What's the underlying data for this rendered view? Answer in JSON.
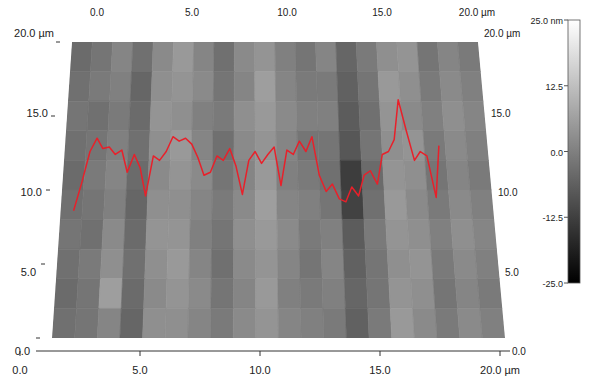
{
  "chart_data": {
    "type": "heatmap",
    "xlim": [
      0,
      20
    ],
    "xticks": [
      {
        "value": 0,
        "label": "0.0"
      },
      {
        "value": 5,
        "label": "5.0"
      },
      {
        "value": 10,
        "label": "10.0"
      },
      {
        "value": 15,
        "label": "15.0"
      },
      {
        "value": 20,
        "label": "20.0 µm"
      }
    ],
    "ylim": [
      0,
      20
    ],
    "yticks": [
      {
        "value": 0,
        "label": "0.0"
      },
      {
        "value": 5,
        "label": "5.0"
      },
      {
        "value": 10,
        "label": "10.0"
      },
      {
        "value": 15,
        "label": "15.0"
      },
      {
        "value": 20,
        "label": "20.0 µm"
      }
    ],
    "cells": [
      [
        -4,
        -2,
        1,
        -3,
        2,
        5,
        1,
        -3,
        2,
        4,
        0,
        -2,
        1,
        -5,
        -1,
        3,
        4,
        -2,
        1,
        -1
      ],
      [
        -3,
        -1,
        0,
        -5,
        3,
        4,
        2,
        -2,
        1,
        6,
        1,
        -1,
        -1,
        -6,
        -2,
        5,
        3,
        -1,
        2,
        0
      ],
      [
        -2,
        -3,
        -1,
        -4,
        4,
        3,
        0,
        -1,
        3,
        5,
        2,
        0,
        0,
        -7,
        -3,
        4,
        2,
        0,
        3,
        1
      ],
      [
        -3,
        -2,
        0,
        -3,
        3,
        5,
        1,
        -3,
        2,
        4,
        1,
        -2,
        -2,
        -8,
        -2,
        3,
        4,
        -1,
        2,
        0
      ],
      [
        -4,
        -1,
        1,
        -4,
        2,
        4,
        2,
        -2,
        1,
        5,
        0,
        -1,
        -3,
        -13,
        -4,
        4,
        3,
        -2,
        1,
        -1
      ],
      [
        -3,
        -2,
        0,
        -5,
        3,
        3,
        1,
        -1,
        2,
        6,
        1,
        0,
        -2,
        -12,
        -3,
        5,
        2,
        -1,
        2,
        0
      ],
      [
        -2,
        -3,
        2,
        -4,
        4,
        4,
        0,
        -2,
        3,
        5,
        2,
        -1,
        0,
        -7,
        -1,
        4,
        3,
        0,
        3,
        1
      ],
      [
        -3,
        -1,
        3,
        -3,
        3,
        5,
        1,
        -3,
        2,
        4,
        1,
        -2,
        1,
        -6,
        -2,
        3,
        4,
        -1,
        2,
        0
      ],
      [
        -4,
        -2,
        6,
        -4,
        2,
        4,
        2,
        -2,
        1,
        5,
        0,
        -1,
        0,
        -5,
        -2,
        4,
        3,
        -2,
        1,
        -1
      ],
      [
        -3,
        -2,
        1,
        -5,
        3,
        3,
        1,
        -1,
        2,
        4,
        1,
        0,
        -1,
        -6,
        -1,
        5,
        2,
        -1,
        2,
        0
      ]
    ],
    "colorbar_range": [
      -25,
      25
    ],
    "colorbar_ticks": [
      {
        "value": 25,
        "label": "25.0 nm"
      },
      {
        "value": 12.5,
        "label": "12.5"
      },
      {
        "value": 0,
        "label": "0.0"
      },
      {
        "value": -12.5,
        "label": "-12.5"
      },
      {
        "value": -25,
        "label": "-25.0"
      }
    ],
    "series": [
      {
        "type": "line",
        "color": "#e8202a",
        "x": [
          0.6,
          0.9,
          1.2,
          1.5,
          1.8,
          2.1,
          2.4,
          2.7,
          3.0,
          3.3,
          3.6,
          3.9,
          4.2,
          4.5,
          4.8,
          5.1,
          5.4,
          5.7,
          6.0,
          6.3,
          6.6,
          6.9,
          7.2,
          7.5,
          7.8,
          8.1,
          8.4,
          8.7,
          9.0,
          9.3,
          9.6,
          9.9,
          10.2,
          10.5,
          10.8,
          11.1,
          11.4,
          11.7,
          12.0,
          12.3,
          12.6,
          12.9,
          13.2,
          13.5,
          13.8,
          14.1,
          14.4,
          14.7,
          15.0,
          15.3,
          15.6,
          15.9,
          16.2,
          16.5,
          16.8,
          17.1,
          17.4,
          17.7
        ],
        "values": [
          8.6,
          10.5,
          12.6,
          13.5,
          12.8,
          12.9,
          12.4,
          12.7,
          11.2,
          12.4,
          11.5,
          9.6,
          12.3,
          12.0,
          12.6,
          13.6,
          13.3,
          13.5,
          13.1,
          12.2,
          11.0,
          11.2,
          12.3,
          12.0,
          12.8,
          11.6,
          9.7,
          12.0,
          12.6,
          11.8,
          12.4,
          12.9,
          10.3,
          12.7,
          12.4,
          13.3,
          12.6,
          13.6,
          11.0,
          9.9,
          10.4,
          9.4,
          9.2,
          10.2,
          9.6,
          11.0,
          11.3,
          10.4,
          12.4,
          12.6,
          13.4,
          16.1,
          14.0,
          12.0,
          12.6,
          12.3,
          9.5,
          13.0
        ]
      }
    ]
  }
}
